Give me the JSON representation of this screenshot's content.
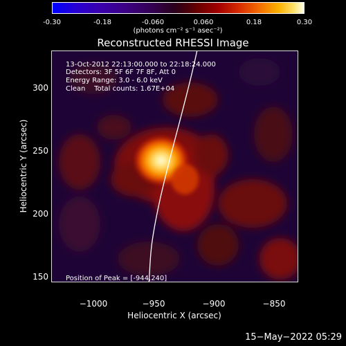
{
  "colorbar": {
    "ticks": [
      "-0.30",
      "-0.18",
      "-0.060",
      "0.060",
      "0.18",
      "0.30"
    ],
    "units": "(photons cm⁻² s⁻¹ asec⁻²)"
  },
  "title": "Reconstructed RHESSI Image",
  "annotations": {
    "time": "13-Oct-2012 22:13:00.000 to 22:18:24.000",
    "detectors": "Detectors: 3F 5F 6F 7F 8F, Att 0",
    "energy": "Energy Range: 3.0 - 6.0 keV",
    "clean": "Clean    Total counts: 1.67E+04",
    "peak": "Position of Peak = [-944,240]"
  },
  "axes": {
    "xlabel": "Heliocentric X (arcsec)",
    "ylabel": "Heliocentric Y (arcsec)",
    "xticks": [
      "−1000",
      "−950",
      "−900",
      "−850"
    ],
    "yticks": [
      "300",
      "250",
      "200",
      "150"
    ]
  },
  "timestamp": "15−May−2022 05:29"
}
